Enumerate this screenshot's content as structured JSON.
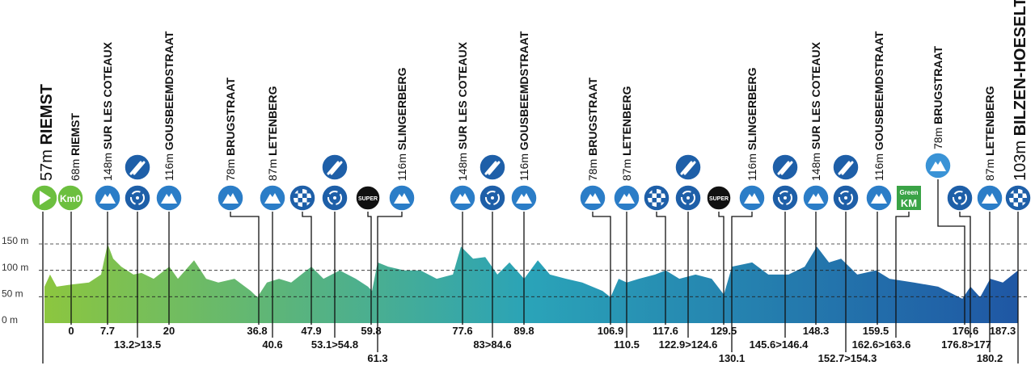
{
  "chart_data": {
    "type": "area",
    "x": [
      -5.3,
      -4.2,
      -2.9,
      0,
      3.5,
      5.9,
      7.2,
      8.3,
      9.9,
      12.3,
      13.9,
      16.3,
      19.4,
      21.1,
      24.3,
      26.7,
      29.1,
      32.3,
      35.5,
      36.8,
      38.7,
      41.1,
      43.5,
      47.5,
      49.9,
      53.1,
      56.3,
      58.7,
      59.5,
      60.6,
      62.7,
      65.9,
      69.1,
      72.3,
      75.5,
      77.1,
      79.5,
      81.9,
      84.3,
      86.7,
      89.6,
      92.3,
      94.7,
      97.9,
      101.1,
      105.1,
      106.7,
      108.3,
      109.9,
      112.3,
      115.5,
      117.6,
      120.3,
      123.5,
      126.7,
      129.1,
      130.7,
      134.7,
      137.9,
      141.9,
      145.1,
      147.5,
      149.9,
      152.3,
      155.5,
      159.2,
      161.9,
      166.7,
      171.5,
      176.3,
      177.9,
      179.8,
      181.8,
      184.3,
      187.3
    ],
    "values": [
      69,
      92,
      69,
      73,
      77,
      92,
      150,
      122,
      107,
      92,
      95,
      84,
      107,
      84,
      119,
      84,
      77,
      84,
      61,
      49,
      77,
      84,
      77,
      107,
      84,
      100,
      84,
      69,
      61,
      115,
      107,
      100,
      100,
      84,
      92,
      145,
      122,
      125,
      92,
      115,
      84,
      119,
      92,
      84,
      77,
      61,
      49,
      84,
      77,
      84,
      92,
      100,
      84,
      92,
      84,
      54,
      107,
      115,
      92,
      92,
      107,
      145,
      115,
      122,
      92,
      100,
      84,
      77,
      69,
      46,
      69,
      49,
      84,
      77,
      100
    ],
    "xlim": [
      -5.3,
      187.3
    ],
    "ylim": [
      0,
      150
    ],
    "yticks": [
      {
        "value": 0,
        "label": "0 m"
      },
      {
        "value": 50,
        "label": "50 m"
      },
      {
        "value": 100,
        "label": "100 m"
      },
      {
        "value": 150,
        "label": "150 m"
      }
    ],
    "grid": true,
    "color_start": "#8cc63f",
    "color_mid": "#2aa3b8",
    "color_end": "#1f57a4"
  },
  "waypoints": [
    {
      "altitude": "57m",
      "name": "RIEMST"
    },
    {
      "altitude": "68m",
      "name": "RIEMST"
    },
    {
      "altitude": "148m",
      "name": "SUR LES COTEAUX"
    },
    {
      "altitude": "116m",
      "name": "GOUSBEEMDSTRAAT"
    },
    {
      "altitude": "78m",
      "name": "BRUGSTRAAT"
    },
    {
      "altitude": "87m",
      "name": "LETENBERG"
    },
    {
      "altitude": "116m",
      "name": "SLINGERBERG"
    },
    {
      "altitude": "148m",
      "name": "SUR LES COTEAUX"
    },
    {
      "altitude": "116m",
      "name": "GOUSBEEMDSTRAAT"
    },
    {
      "altitude": "78m",
      "name": "BRUGSTRAAT"
    },
    {
      "altitude": "87m",
      "name": "LETENBERG"
    },
    {
      "altitude": "116m",
      "name": "SLINGERBERG"
    },
    {
      "altitude": "148m",
      "name": "SUR LES COTEAUX"
    },
    {
      "altitude": "116m",
      "name": "GOUSBEEMDSTRAAT"
    },
    {
      "altitude": "78m",
      "name": "BRUGSTRAAT"
    },
    {
      "altitude": "87m",
      "name": "LETENBERG"
    },
    {
      "altitude": "103m",
      "name": "BILZEN-HOESELT"
    }
  ],
  "km_labels": [
    0,
    7.7,
    20,
    36.8,
    47.9,
    59.8,
    77.6,
    89.8,
    106.9,
    117.6,
    129.5,
    148.3,
    159.5,
    176.6,
    187.3,
    "13.2>13.5",
    40.6,
    "53.1>54.8",
    "83>84.6",
    110.5,
    "122.9>124.6",
    "145.6>146.4",
    "162.6>163.6",
    "176.8>177",
    61.3,
    130.1,
    "152.7>154.3",
    180.2
  ],
  "badges": {
    "km0": "Km0",
    "super": "SUPER",
    "green_top": "Green",
    "green_bottom": "KM"
  }
}
